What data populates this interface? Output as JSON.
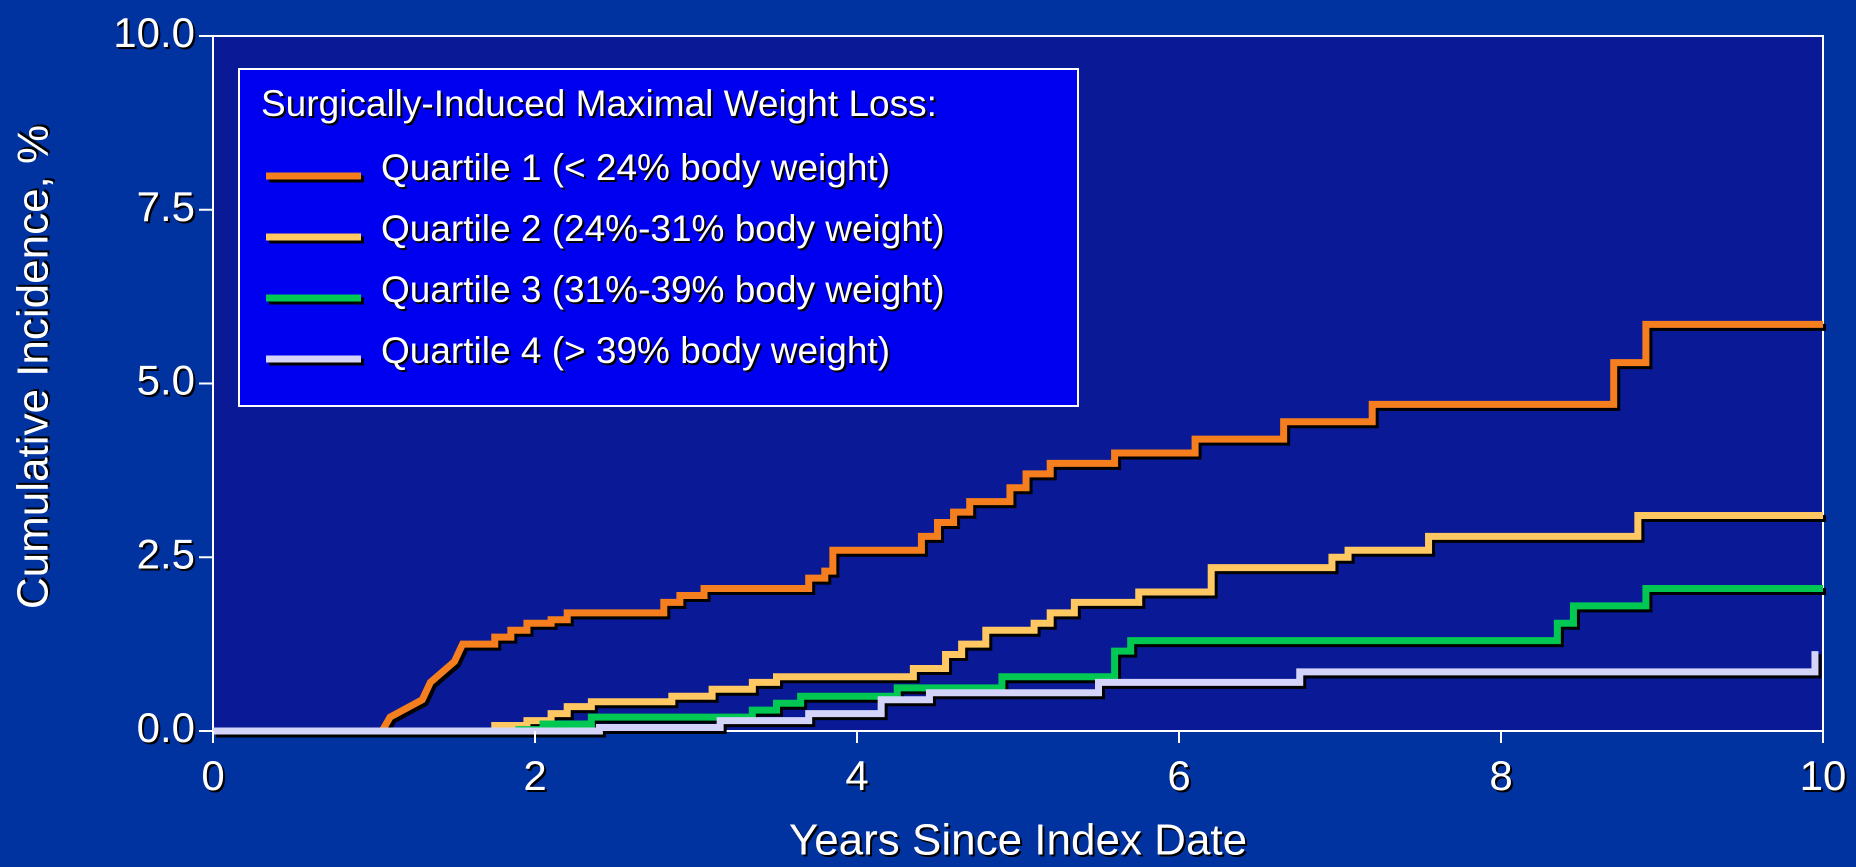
{
  "chart_data": {
    "type": "line",
    "step": true,
    "xlabel": "Years Since Index Date",
    "ylabel": "Cumulative Incidence, %",
    "legend_title": "Surgically-Induced Maximal Weight Loss:",
    "legend": "upper left",
    "xlim": [
      0,
      10
    ],
    "xticks": [
      0,
      2,
      4,
      6,
      8,
      10
    ],
    "ylim": [
      0,
      10
    ],
    "yticks": [
      {
        "value": 0,
        "label": "0.0"
      },
      {
        "value": 2.5,
        "label": "2.5"
      },
      {
        "value": 5,
        "label": "5.0"
      },
      {
        "value": 7.5,
        "label": "7.5"
      },
      {
        "value": 10,
        "label": "10.0"
      }
    ],
    "series": [
      {
        "name": "Quartile 1 (< 24% body weight)",
        "color": "#f57f1f",
        "x": [
          0,
          1.05,
          1.1,
          1.3,
          1.35,
          1.5,
          1.55,
          1.75,
          1.75,
          1.85,
          1.85,
          1.95,
          1.95,
          2.1,
          2.1,
          2.2,
          2.2,
          2.8,
          2.8,
          2.9,
          2.9,
          3.05,
          3.05,
          3.7,
          3.7,
          3.8,
          3.8,
          3.85,
          3.85,
          4.4,
          4.4,
          4.5,
          4.5,
          4.6,
          4.6,
          4.7,
          4.7,
          4.95,
          4.95,
          5.05,
          5.05,
          5.2,
          5.2,
          5.6,
          5.6,
          6.1,
          6.1,
          6.65,
          6.65,
          7.2,
          7.2,
          8.7,
          8.7,
          8.9,
          8.9,
          10
        ],
        "values": [
          0,
          0,
          0.2,
          0.45,
          0.7,
          1.0,
          1.25,
          1.25,
          1.35,
          1.35,
          1.45,
          1.45,
          1.55,
          1.55,
          1.6,
          1.6,
          1.7,
          1.7,
          1.85,
          1.85,
          1.95,
          1.95,
          2.05,
          2.05,
          2.2,
          2.2,
          2.3,
          2.3,
          2.6,
          2.6,
          2.8,
          2.8,
          3.0,
          3.0,
          3.15,
          3.15,
          3.3,
          3.3,
          3.5,
          3.5,
          3.7,
          3.7,
          3.85,
          3.85,
          4.0,
          4.0,
          4.2,
          4.2,
          4.45,
          4.45,
          4.7,
          4.7,
          5.3,
          5.3,
          5.85,
          5.85
        ]
      },
      {
        "name": "Quartile 2 (24%-31% body weight)",
        "color": "#ffc862",
        "x": [
          0,
          1.75,
          1.75,
          1.95,
          1.95,
          2.1,
          2.1,
          2.2,
          2.2,
          2.35,
          2.35,
          2.85,
          2.85,
          3.1,
          3.1,
          3.35,
          3.35,
          3.5,
          3.5,
          4.35,
          4.35,
          4.55,
          4.55,
          4.65,
          4.65,
          4.8,
          4.8,
          5.1,
          5.1,
          5.2,
          5.2,
          5.35,
          5.35,
          5.75,
          5.75,
          6.2,
          6.2,
          6.95,
          6.95,
          7.05,
          7.05,
          7.55,
          7.55,
          8.85,
          8.85,
          10
        ],
        "values": [
          0,
          0,
          0.08,
          0.08,
          0.15,
          0.15,
          0.25,
          0.25,
          0.35,
          0.35,
          0.42,
          0.42,
          0.5,
          0.5,
          0.6,
          0.6,
          0.7,
          0.7,
          0.78,
          0.78,
          0.9,
          0.9,
          1.1,
          1.1,
          1.25,
          1.25,
          1.45,
          1.45,
          1.55,
          1.55,
          1.7,
          1.7,
          1.85,
          1.85,
          2.0,
          2.0,
          2.35,
          2.35,
          2.5,
          2.5,
          2.6,
          2.6,
          2.8,
          2.8,
          3.1,
          3.1
        ]
      },
      {
        "name": "Quartile 3 (31%-39% body weight)",
        "color": "#00c853",
        "x": [
          0,
          1.9,
          1.9,
          2.05,
          2.05,
          2.35,
          2.35,
          3.35,
          3.35,
          3.5,
          3.5,
          3.65,
          3.65,
          4.25,
          4.25,
          4.9,
          4.9,
          5.6,
          5.6,
          5.7,
          5.7,
          8.35,
          8.35,
          8.45,
          8.45,
          8.9,
          8.9,
          10
        ],
        "values": [
          0,
          0,
          0.02,
          0.02,
          0.1,
          0.1,
          0.2,
          0.2,
          0.3,
          0.3,
          0.4,
          0.4,
          0.5,
          0.5,
          0.62,
          0.62,
          0.78,
          0.78,
          1.15,
          1.15,
          1.3,
          1.3,
          1.55,
          1.55,
          1.8,
          1.8,
          2.05,
          2.05
        ]
      },
      {
        "name": "Quartile 4 (> 39% body weight)",
        "color": "#d4d4fa",
        "x": [
          0,
          2.4,
          2.4,
          3.15,
          3.15,
          3.7,
          3.7,
          4.15,
          4.15,
          4.45,
          4.45,
          5.5,
          5.5,
          6.75,
          6.75,
          9.95,
          9.95
        ],
        "values": [
          0,
          0,
          0.05,
          0.05,
          0.15,
          0.15,
          0.25,
          0.25,
          0.45,
          0.45,
          0.55,
          0.55,
          0.7,
          0.7,
          0.85,
          0.85,
          1.15
        ]
      }
    ]
  }
}
